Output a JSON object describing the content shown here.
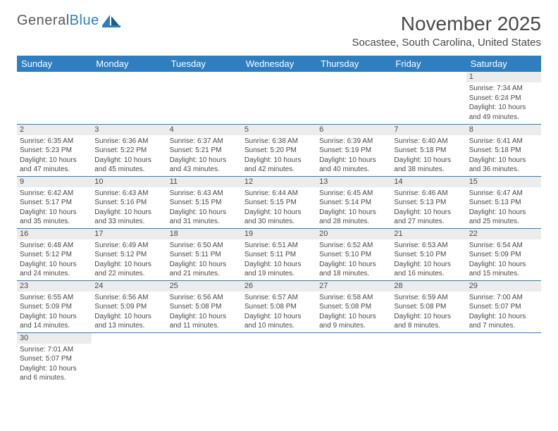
{
  "background_color": "#ffffff",
  "header_bg_color": "#2f7fc0",
  "border_color": "#2f7fc0",
  "daynum_bg": "#ececec",
  "text_color": "#494949",
  "logo": {
    "word1": "General",
    "word2": "Blue"
  },
  "title": "November 2025",
  "location": "Socastee, South Carolina, United States",
  "day_names": [
    "Sunday",
    "Monday",
    "Tuesday",
    "Wednesday",
    "Thursday",
    "Friday",
    "Saturday"
  ],
  "weeks": [
    [
      null,
      null,
      null,
      null,
      null,
      null,
      {
        "n": "1",
        "sunrise": "7:34 AM",
        "sunset": "6:24 PM",
        "dl1": "10 hours",
        "dl2": "and 49 minutes."
      }
    ],
    [
      {
        "n": "2",
        "sunrise": "6:35 AM",
        "sunset": "5:23 PM",
        "dl1": "10 hours",
        "dl2": "and 47 minutes."
      },
      {
        "n": "3",
        "sunrise": "6:36 AM",
        "sunset": "5:22 PM",
        "dl1": "10 hours",
        "dl2": "and 45 minutes."
      },
      {
        "n": "4",
        "sunrise": "6:37 AM",
        "sunset": "5:21 PM",
        "dl1": "10 hours",
        "dl2": "and 43 minutes."
      },
      {
        "n": "5",
        "sunrise": "6:38 AM",
        "sunset": "5:20 PM",
        "dl1": "10 hours",
        "dl2": "and 42 minutes."
      },
      {
        "n": "6",
        "sunrise": "6:39 AM",
        "sunset": "5:19 PM",
        "dl1": "10 hours",
        "dl2": "and 40 minutes."
      },
      {
        "n": "7",
        "sunrise": "6:40 AM",
        "sunset": "5:18 PM",
        "dl1": "10 hours",
        "dl2": "and 38 minutes."
      },
      {
        "n": "8",
        "sunrise": "6:41 AM",
        "sunset": "5:18 PM",
        "dl1": "10 hours",
        "dl2": "and 36 minutes."
      }
    ],
    [
      {
        "n": "9",
        "sunrise": "6:42 AM",
        "sunset": "5:17 PM",
        "dl1": "10 hours",
        "dl2": "and 35 minutes."
      },
      {
        "n": "10",
        "sunrise": "6:43 AM",
        "sunset": "5:16 PM",
        "dl1": "10 hours",
        "dl2": "and 33 minutes."
      },
      {
        "n": "11",
        "sunrise": "6:43 AM",
        "sunset": "5:15 PM",
        "dl1": "10 hours",
        "dl2": "and 31 minutes."
      },
      {
        "n": "12",
        "sunrise": "6:44 AM",
        "sunset": "5:15 PM",
        "dl1": "10 hours",
        "dl2": "and 30 minutes."
      },
      {
        "n": "13",
        "sunrise": "6:45 AM",
        "sunset": "5:14 PM",
        "dl1": "10 hours",
        "dl2": "and 28 minutes."
      },
      {
        "n": "14",
        "sunrise": "6:46 AM",
        "sunset": "5:13 PM",
        "dl1": "10 hours",
        "dl2": "and 27 minutes."
      },
      {
        "n": "15",
        "sunrise": "6:47 AM",
        "sunset": "5:13 PM",
        "dl1": "10 hours",
        "dl2": "and 25 minutes."
      }
    ],
    [
      {
        "n": "16",
        "sunrise": "6:48 AM",
        "sunset": "5:12 PM",
        "dl1": "10 hours",
        "dl2": "and 24 minutes."
      },
      {
        "n": "17",
        "sunrise": "6:49 AM",
        "sunset": "5:12 PM",
        "dl1": "10 hours",
        "dl2": "and 22 minutes."
      },
      {
        "n": "18",
        "sunrise": "6:50 AM",
        "sunset": "5:11 PM",
        "dl1": "10 hours",
        "dl2": "and 21 minutes."
      },
      {
        "n": "19",
        "sunrise": "6:51 AM",
        "sunset": "5:11 PM",
        "dl1": "10 hours",
        "dl2": "and 19 minutes."
      },
      {
        "n": "20",
        "sunrise": "6:52 AM",
        "sunset": "5:10 PM",
        "dl1": "10 hours",
        "dl2": "and 18 minutes."
      },
      {
        "n": "21",
        "sunrise": "6:53 AM",
        "sunset": "5:10 PM",
        "dl1": "10 hours",
        "dl2": "and 16 minutes."
      },
      {
        "n": "22",
        "sunrise": "6:54 AM",
        "sunset": "5:09 PM",
        "dl1": "10 hours",
        "dl2": "and 15 minutes."
      }
    ],
    [
      {
        "n": "23",
        "sunrise": "6:55 AM",
        "sunset": "5:09 PM",
        "dl1": "10 hours",
        "dl2": "and 14 minutes."
      },
      {
        "n": "24",
        "sunrise": "6:56 AM",
        "sunset": "5:09 PM",
        "dl1": "10 hours",
        "dl2": "and 13 minutes."
      },
      {
        "n": "25",
        "sunrise": "6:56 AM",
        "sunset": "5:08 PM",
        "dl1": "10 hours",
        "dl2": "and 11 minutes."
      },
      {
        "n": "26",
        "sunrise": "6:57 AM",
        "sunset": "5:08 PM",
        "dl1": "10 hours",
        "dl2": "and 10 minutes."
      },
      {
        "n": "27",
        "sunrise": "6:58 AM",
        "sunset": "5:08 PM",
        "dl1": "10 hours",
        "dl2": "and 9 minutes."
      },
      {
        "n": "28",
        "sunrise": "6:59 AM",
        "sunset": "5:08 PM",
        "dl1": "10 hours",
        "dl2": "and 8 minutes."
      },
      {
        "n": "29",
        "sunrise": "7:00 AM",
        "sunset": "5:07 PM",
        "dl1": "10 hours",
        "dl2": "and 7 minutes."
      }
    ],
    [
      {
        "n": "30",
        "sunrise": "7:01 AM",
        "sunset": "5:07 PM",
        "dl1": "10 hours",
        "dl2": "and 6 minutes."
      },
      null,
      null,
      null,
      null,
      null,
      null
    ]
  ]
}
